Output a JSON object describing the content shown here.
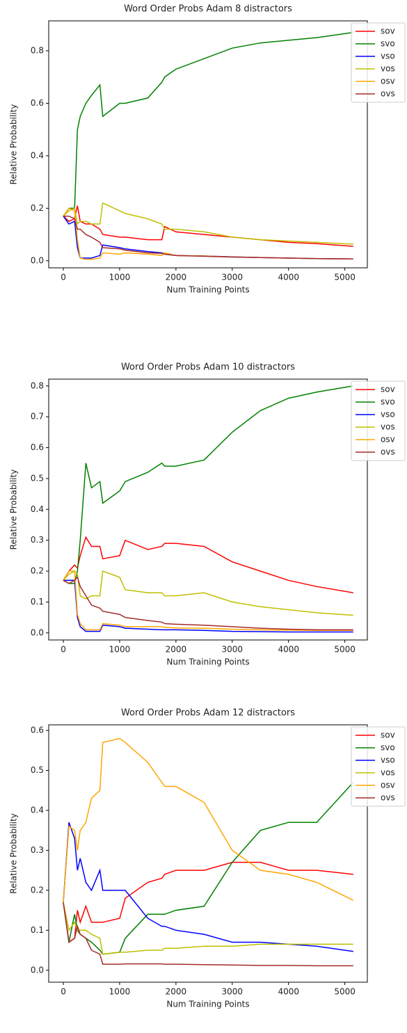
{
  "chart_data": [
    {
      "type": "line",
      "title": "Word Order Probs Adam 8 distractors",
      "xlabel": "Num Training Points",
      "ylabel": "Relative Probability",
      "x": [
        0,
        100,
        200,
        250,
        300,
        400,
        500,
        650,
        700,
        1000,
        1100,
        1500,
        1750,
        1800,
        2000,
        2500,
        3000,
        3500,
        4000,
        4500,
        5150
      ],
      "xlim": [
        -260,
        5400
      ],
      "xticks": [
        0,
        1000,
        2000,
        3000,
        4000,
        5000
      ],
      "ylim": [
        -0.027,
        0.914
      ],
      "yticks": [
        {
          "value": 0,
          "label": "0.0"
        },
        0.2,
        0.4,
        0.6,
        0.8
      ],
      "legend": "upper right",
      "series": [
        {
          "name": "sov",
          "color": "#ff0000",
          "values": [
            0.17,
            0.15,
            0.16,
            0.21,
            0.15,
            0.14,
            0.14,
            0.12,
            0.1,
            0.09,
            0.09,
            0.08,
            0.08,
            0.13,
            0.11,
            0.1,
            0.09,
            0.08,
            0.07,
            0.065,
            0.055
          ]
        },
        {
          "name": "svo",
          "color": "#008000",
          "values": [
            0.17,
            0.2,
            0.2,
            0.5,
            0.55,
            0.6,
            0.63,
            0.67,
            0.55,
            0.6,
            0.6,
            0.62,
            0.68,
            0.7,
            0.73,
            0.77,
            0.81,
            0.83,
            0.84,
            0.85,
            0.87
          ]
        },
        {
          "name": "vso",
          "color": "#0000ff",
          "values": [
            0.17,
            0.14,
            0.15,
            0.05,
            0.01,
            0.01,
            0.01,
            0.02,
            0.06,
            0.05,
            0.045,
            0.035,
            0.03,
            0.025,
            0.02,
            0.018,
            0.015,
            0.012,
            0.01,
            0.008,
            0.007
          ]
        },
        {
          "name": "vos",
          "color": "#bfbf00",
          "values": [
            0.17,
            0.19,
            0.2,
            0.14,
            0.15,
            0.15,
            0.14,
            0.14,
            0.22,
            0.19,
            0.18,
            0.16,
            0.14,
            0.12,
            0.12,
            0.11,
            0.09,
            0.08,
            0.075,
            0.07,
            0.063
          ]
        },
        {
          "name": "osv",
          "color": "#ffa500",
          "values": [
            0.17,
            0.2,
            0.19,
            0.08,
            0.01,
            0.005,
            0.005,
            0.01,
            0.03,
            0.025,
            0.03,
            0.025,
            0.02,
            0.03,
            0.02,
            0.018,
            0.014,
            0.012,
            0.01,
            0.008,
            0.007
          ]
        },
        {
          "name": "ovs",
          "color": "#a52a2a",
          "values": [
            0.17,
            0.17,
            0.16,
            0.12,
            0.12,
            0.1,
            0.09,
            0.07,
            0.05,
            0.045,
            0.04,
            0.03,
            0.028,
            0.025,
            0.02,
            0.017,
            0.014,
            0.012,
            0.01,
            0.008,
            0.007
          ]
        }
      ]
    },
    {
      "type": "line",
      "title": "Word Order Probs Adam 10 distractors",
      "xlabel": "Num Training Points",
      "ylabel": "Relative Probability",
      "x": [
        0,
        100,
        200,
        250,
        300,
        400,
        500,
        650,
        700,
        1000,
        1100,
        1500,
        1750,
        1800,
        2000,
        2500,
        3000,
        3500,
        4000,
        4500,
        5150
      ],
      "xlim": [
        -260,
        5400
      ],
      "xticks": [
        0,
        1000,
        2000,
        3000,
        4000,
        5000
      ],
      "ylim": [
        -0.023,
        0.822
      ],
      "yticks": [
        {
          "value": 0,
          "label": "0.0"
        },
        0.1,
        0.2,
        0.3,
        0.4,
        0.5,
        0.6,
        0.7,
        0.8
      ],
      "legend": "upper right",
      "series": [
        {
          "name": "sov",
          "color": "#ff0000",
          "values": [
            0.17,
            0.2,
            0.22,
            0.21,
            0.25,
            0.31,
            0.28,
            0.28,
            0.24,
            0.25,
            0.3,
            0.27,
            0.28,
            0.29,
            0.29,
            0.28,
            0.23,
            0.2,
            0.17,
            0.15,
            0.13
          ]
        },
        {
          "name": "svo",
          "color": "#008000",
          "values": [
            0.17,
            0.16,
            0.16,
            0.2,
            0.3,
            0.55,
            0.47,
            0.49,
            0.42,
            0.46,
            0.49,
            0.52,
            0.55,
            0.54,
            0.54,
            0.56,
            0.65,
            0.72,
            0.76,
            0.78,
            0.8
          ]
        },
        {
          "name": "vso",
          "color": "#0000ff",
          "values": [
            0.17,
            0.17,
            0.17,
            0.05,
            0.02,
            0.005,
            0.005,
            0.005,
            0.025,
            0.02,
            0.015,
            0.012,
            0.01,
            0.01,
            0.01,
            0.008,
            0.005,
            0.004,
            0.003,
            0.003,
            0.003
          ]
        },
        {
          "name": "vos",
          "color": "#bfbf00",
          "values": [
            0.17,
            0.19,
            0.2,
            0.19,
            0.12,
            0.11,
            0.12,
            0.12,
            0.2,
            0.18,
            0.14,
            0.13,
            0.13,
            0.12,
            0.12,
            0.13,
            0.1,
            0.085,
            0.075,
            0.065,
            0.057
          ]
        },
        {
          "name": "osv",
          "color": "#ffa500",
          "values": [
            0.17,
            0.2,
            0.2,
            0.06,
            0.03,
            0.01,
            0.01,
            0.01,
            0.03,
            0.025,
            0.02,
            0.02,
            0.02,
            0.018,
            0.016,
            0.015,
            0.012,
            0.01,
            0.009,
            0.008,
            0.008
          ]
        },
        {
          "name": "ovs",
          "color": "#a52a2a",
          "values": [
            0.17,
            0.16,
            0.17,
            0.18,
            0.15,
            0.12,
            0.09,
            0.08,
            0.07,
            0.06,
            0.05,
            0.04,
            0.035,
            0.03,
            0.028,
            0.025,
            0.02,
            0.015,
            0.012,
            0.01,
            0.01
          ]
        }
      ]
    },
    {
      "type": "line",
      "title": "Word Order Probs Adam 12 distractors",
      "xlabel": "Num Training Points",
      "ylabel": "Relative Probability",
      "x": [
        0,
        100,
        200,
        250,
        300,
        400,
        500,
        650,
        700,
        1000,
        1100,
        1500,
        1750,
        1800,
        2000,
        2500,
        3000,
        3500,
        4000,
        4500,
        5150
      ],
      "xlim": [
        -260,
        5400
      ],
      "xticks": [
        0,
        1000,
        2000,
        3000,
        4000,
        5000
      ],
      "ylim": [
        -0.03,
        0.614
      ],
      "yticks": [
        {
          "value": 0,
          "label": "0.0"
        },
        0.1,
        0.2,
        0.3,
        0.4,
        0.5,
        0.6
      ],
      "legend": "upper right",
      "series": [
        {
          "name": "sov",
          "color": "#ff0000",
          "values": [
            0.17,
            0.07,
            0.08,
            0.15,
            0.12,
            0.16,
            0.12,
            0.12,
            0.12,
            0.13,
            0.18,
            0.22,
            0.23,
            0.24,
            0.25,
            0.25,
            0.27,
            0.27,
            0.25,
            0.25,
            0.24
          ]
        },
        {
          "name": "svo",
          "color": "#008000",
          "values": [
            0.17,
            0.07,
            0.14,
            0.1,
            0.09,
            0.08,
            0.07,
            0.05,
            0.04,
            0.045,
            0.08,
            0.14,
            0.14,
            0.14,
            0.15,
            0.16,
            0.27,
            0.35,
            0.37,
            0.37,
            0.47
          ]
        },
        {
          "name": "vso",
          "color": "#0000ff",
          "values": [
            0.17,
            0.37,
            0.33,
            0.25,
            0.28,
            0.22,
            0.2,
            0.25,
            0.2,
            0.2,
            0.2,
            0.13,
            0.11,
            0.11,
            0.1,
            0.09,
            0.07,
            0.07,
            0.065,
            0.06,
            0.047
          ]
        },
        {
          "name": "vos",
          "color": "#bfbf00",
          "values": [
            0.17,
            0.1,
            0.12,
            0.1,
            0.1,
            0.1,
            0.09,
            0.08,
            0.04,
            0.045,
            0.045,
            0.05,
            0.05,
            0.055,
            0.055,
            0.06,
            0.06,
            0.065,
            0.065,
            0.065,
            0.065
          ]
        },
        {
          "name": "osv",
          "color": "#ffa500",
          "values": [
            0.17,
            0.36,
            0.35,
            0.3,
            0.35,
            0.37,
            0.43,
            0.45,
            0.57,
            0.58,
            0.57,
            0.52,
            0.47,
            0.46,
            0.46,
            0.42,
            0.3,
            0.25,
            0.24,
            0.22,
            0.175
          ]
        },
        {
          "name": "ovs",
          "color": "#a52a2a",
          "values": [
            0.17,
            0.07,
            0.08,
            0.11,
            0.09,
            0.08,
            0.05,
            0.04,
            0.015,
            0.015,
            0.016,
            0.016,
            0.016,
            0.015,
            0.015,
            0.014,
            0.013,
            0.012,
            0.012,
            0.011,
            0.011
          ]
        }
      ]
    }
  ]
}
